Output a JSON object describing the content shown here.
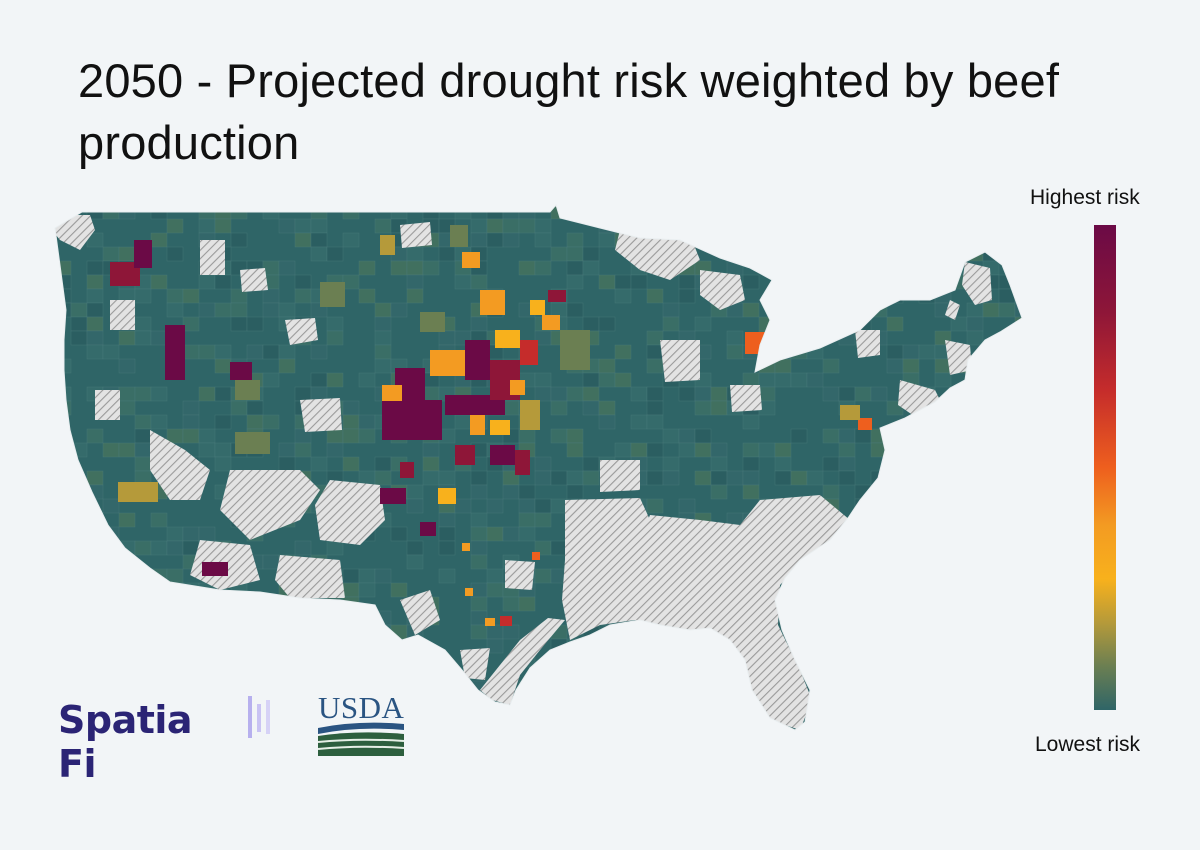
{
  "title": "2050 - Projected drought risk weighted by beef production",
  "legend": {
    "high_label": "Highest risk",
    "low_label": "Lowest risk",
    "colors": [
      "#6b0a46",
      "#8e1638",
      "#c52c2b",
      "#ee5f1e",
      "#f39b22",
      "#f8b11c",
      "#b59a3a",
      "#6b7f52",
      "#2f6567"
    ]
  },
  "map": {
    "base_color": "#2f6567",
    "no_data_color": "#c8c8c8",
    "region": "Contiguous United States, county level"
  },
  "logos": {
    "spatiafi": "Spatia Fi",
    "usda": "USDA"
  }
}
